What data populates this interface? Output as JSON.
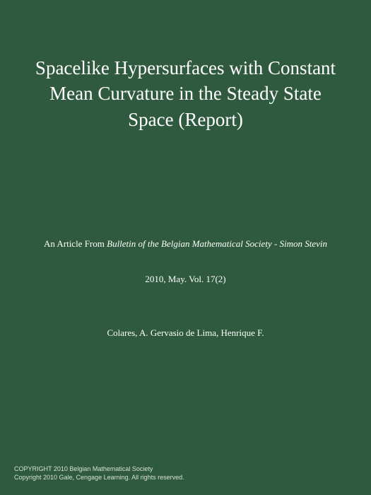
{
  "cover": {
    "background_color": "#2f5a3f",
    "text_color": "#ffffff",
    "title": "Spacelike Hypersurfaces with Constant Mean Curvature in the Steady State Space (Report)",
    "title_fontsize": 27,
    "source": {
      "prefix": "An Article From ",
      "journal": "Bulletin of the Belgian Mathematical Society - Simon Stevin",
      "fontsize": 13
    },
    "issue": "2010, May. Vol. 17(2)",
    "authors": "Colares, A. Gervasio de Lima, Henrique F.",
    "footer": {
      "line1": "COPYRIGHT 2010 Belgian Mathematical Society",
      "line2": "Copyright 2010 Gale, Cengage Learning. All rights reserved.",
      "color": "#d6e0d8",
      "fontsize": 9
    }
  }
}
